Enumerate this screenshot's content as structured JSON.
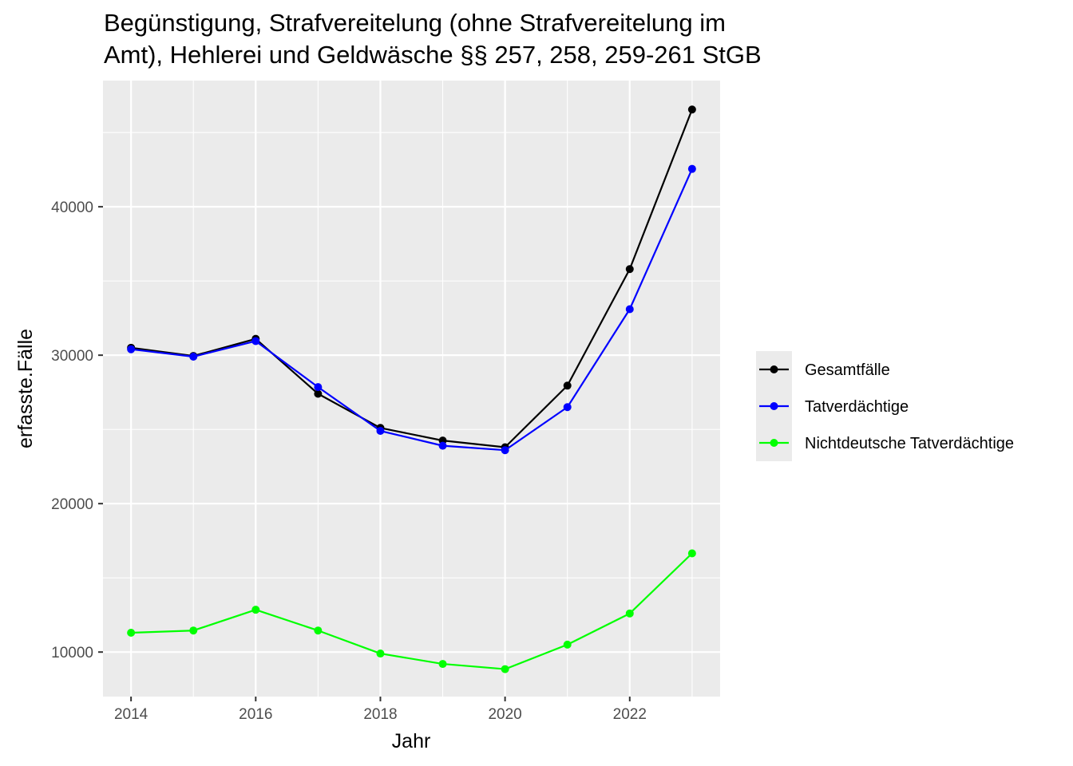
{
  "chart_data": {
    "type": "line",
    "title_lines": [
      "Begünstigung, Strafvereitelung (ohne Strafvereitelung im",
      "Amt), Hehlerei und Geldwäsche §§ 257, 258, 259-261 StGB"
    ],
    "xlabel": "Jahr",
    "ylabel": "erfasste.Fälle",
    "x": [
      2014,
      2015,
      2016,
      2017,
      2018,
      2019,
      2020,
      2021,
      2022,
      2023
    ],
    "xlim": [
      2013.55,
      2023.45
    ],
    "ylim": [
      7000,
      48500
    ],
    "x_ticks": [
      2014,
      2016,
      2018,
      2020,
      2022
    ],
    "y_ticks": [
      10000,
      20000,
      30000,
      40000
    ],
    "x_tick_labels": [
      "2014",
      "2016",
      "2018",
      "2020",
      "2022"
    ],
    "y_tick_labels": [
      "10000",
      "20000",
      "30000",
      "40000"
    ],
    "grid": true,
    "legend_position": "right",
    "series": [
      {
        "name": "Gesamtfälle",
        "color": "#000000",
        "values": [
          30500,
          29950,
          31100,
          27400,
          25100,
          24250,
          23800,
          27950,
          35800,
          46550
        ]
      },
      {
        "name": "Tatverdächtige",
        "color": "#0000ff",
        "values": [
          30400,
          29900,
          30950,
          27850,
          24900,
          23900,
          23600,
          26500,
          33100,
          42550
        ]
      },
      {
        "name": "Nichtdeutsche Tatverdächtige",
        "color": "#00ff00",
        "values": [
          11300,
          11450,
          12850,
          11450,
          9900,
          9200,
          8850,
          10500,
          12600,
          16650
        ]
      }
    ]
  }
}
